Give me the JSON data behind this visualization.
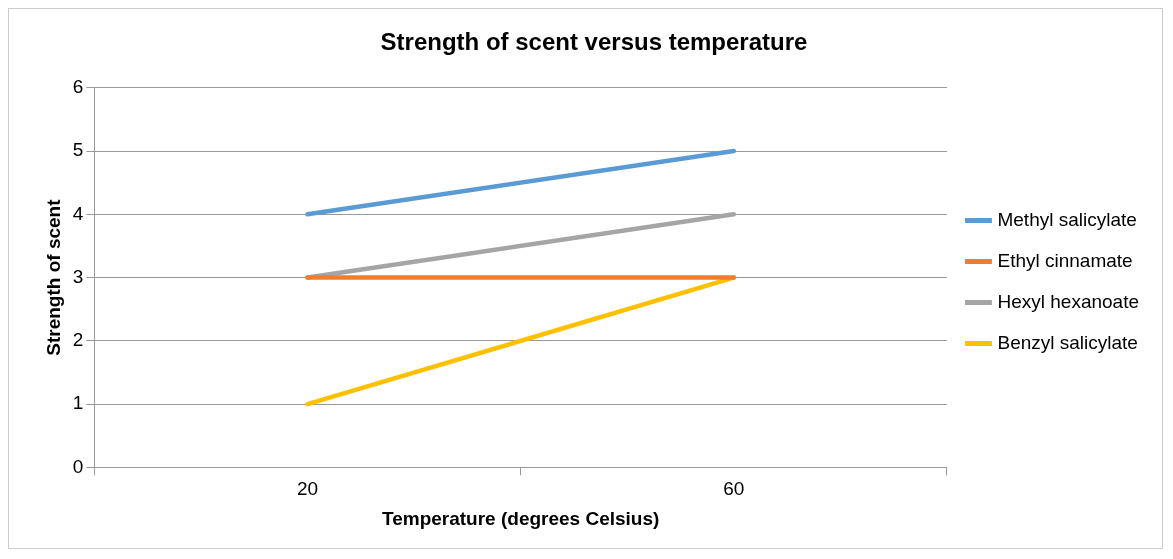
{
  "chart_data": {
    "type": "line",
    "title": "Strength of scent versus temperature",
    "xlabel": "Temperature (degrees Celsius)",
    "ylabel": "Strength of scent",
    "categories": [
      "20",
      "60"
    ],
    "series": [
      {
        "name": "Methyl salicylate",
        "color": "#5b9bd5",
        "values": [
          4,
          5
        ]
      },
      {
        "name": "Ethyl cinnamate",
        "color": "#ed7d31",
        "values": [
          3,
          3
        ]
      },
      {
        "name": "Hexyl hexanoate",
        "color": "#a5a5a5",
        "values": [
          3,
          4
        ]
      },
      {
        "name": "Benzyl salicylate",
        "color": "#ffc000",
        "values": [
          1,
          3
        ]
      }
    ],
    "ylim": [
      0,
      6
    ],
    "yticks": [
      0,
      1,
      2,
      3,
      4,
      5,
      6
    ],
    "grid": "y",
    "legend": "right",
    "marker": "none",
    "line_style": "solid"
  }
}
